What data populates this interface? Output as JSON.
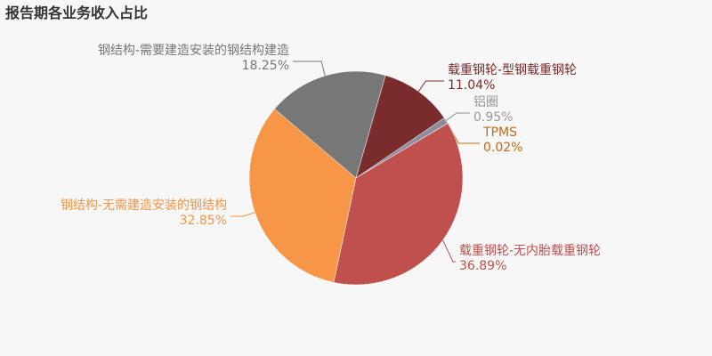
{
  "chart_data": {
    "type": "pie",
    "title": "报告期各业务收入占比",
    "categories": [
      "载重钢轮-型钢载重钢轮",
      "铝圈",
      "TPMS",
      "载重钢轮-无内胎载重钢轮",
      "钢结构-无需建造安装的钢结构",
      "钢结构-需要建造安装的钢结构建造"
    ],
    "values": [
      11.04,
      0.95,
      0.02,
      36.89,
      32.85,
      18.25
    ],
    "value_labels": [
      "11.04%",
      "0.95%",
      "0.02%",
      "36.89%",
      "32.85%",
      "18.25%"
    ],
    "colors": [
      "#7a2b2c",
      "#8c8c9e",
      "#c46a12",
      "#c0504d",
      "#f79646",
      "#777777"
    ]
  }
}
